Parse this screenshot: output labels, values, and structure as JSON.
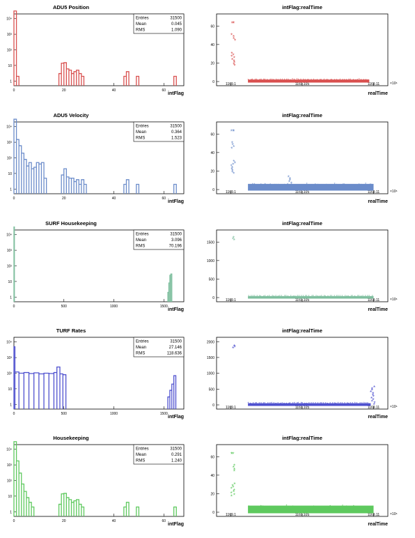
{
  "chart_data": [
    {
      "type": "histogram",
      "title": "ADU5 Position",
      "xlabel": "intFlag",
      "log_y": true,
      "xlim": [
        0,
        68
      ],
      "ylim": [
        0.5,
        20000
      ],
      "x_ticks": [
        "0",
        "20",
        "40",
        "60"
      ],
      "y_ticks": [
        "1",
        "10",
        "10²",
        "10³",
        "10⁴"
      ],
      "stats": {
        "Entries": "31500",
        "Mean": "0.045",
        "RMS": "1.090"
      },
      "color": "#d9504f",
      "bins": [
        [
          0,
          1,
          31000
        ],
        [
          1,
          2,
          2
        ],
        [
          18,
          19,
          3
        ],
        [
          19,
          20,
          14
        ],
        [
          20,
          21,
          15
        ],
        [
          21,
          22,
          6
        ],
        [
          22,
          23,
          5
        ],
        [
          23,
          24,
          3
        ],
        [
          24,
          25,
          4
        ],
        [
          25,
          26,
          5
        ],
        [
          26,
          27,
          3
        ],
        [
          27,
          28,
          2
        ],
        [
          44,
          45,
          2
        ],
        [
          45,
          46,
          4
        ],
        [
          49,
          50,
          2
        ],
        [
          64,
          65,
          2
        ]
      ]
    },
    {
      "type": "scatter",
      "title": "intFlag:realTime",
      "xlabel": "realTime",
      "x_multiplier": "×10⁶",
      "xlim": [
        1169.0,
        1169.12
      ],
      "ylim": [
        0,
        70
      ],
      "x_ticks": [
        "1169.1",
        "1169.105",
        "1169.11"
      ],
      "y_ticks": [
        "0",
        "20",
        "40",
        "60"
      ],
      "color": "#d9504f",
      "clusters": [
        {
          "x": [
            1169.01,
            1169.012
          ],
          "y": [
            63,
            63
          ]
        },
        {
          "x": [
            1169.01,
            1169.012
          ],
          "y": [
            44,
            50
          ]
        },
        {
          "x": [
            1169.01,
            1169.012
          ],
          "y": [
            17,
            30
          ]
        },
        {
          "x": [
            1169.022,
            1169.107
          ],
          "y": [
            0,
            1
          ]
        }
      ]
    },
    {
      "type": "histogram",
      "title": "ADU5 Velocity",
      "xlabel": "intFlag",
      "log_y": true,
      "xlim": [
        0,
        68
      ],
      "ylim": [
        0.5,
        20000
      ],
      "x_ticks": [
        "0",
        "20",
        "40",
        "60"
      ],
      "y_ticks": [
        "1",
        "10",
        "10²",
        "10³",
        "10⁴"
      ],
      "stats": {
        "Entries": "31500",
        "Mean": "0.364",
        "RMS": "1.523"
      },
      "color": "#6b8cca",
      "bins": [
        [
          0,
          1,
          30000
        ],
        [
          1,
          2,
          1500
        ],
        [
          2,
          3,
          600
        ],
        [
          3,
          4,
          200
        ],
        [
          4,
          5,
          80
        ],
        [
          5,
          6,
          30
        ],
        [
          6,
          7,
          50
        ],
        [
          7,
          8,
          20
        ],
        [
          8,
          9,
          25
        ],
        [
          9,
          10,
          50
        ],
        [
          10,
          11,
          40
        ],
        [
          11,
          12,
          50
        ],
        [
          12,
          13,
          5
        ],
        [
          19,
          20,
          8
        ],
        [
          20,
          21,
          20
        ],
        [
          21,
          22,
          6
        ],
        [
          22,
          23,
          5
        ],
        [
          23,
          24,
          5
        ],
        [
          24,
          25,
          3
        ],
        [
          25,
          26,
          4
        ],
        [
          26,
          27,
          2
        ],
        [
          27,
          28,
          4
        ],
        [
          28,
          29,
          2
        ],
        [
          44,
          45,
          2
        ],
        [
          45,
          46,
          4
        ],
        [
          49,
          50,
          2
        ],
        [
          64,
          65,
          2
        ]
      ]
    },
    {
      "type": "scatter",
      "title": "intFlag:realTime",
      "xlabel": "realTime",
      "x_multiplier": "×10⁶",
      "xlim": [
        1169.0,
        1169.12
      ],
      "ylim": [
        0,
        70
      ],
      "x_ticks": [
        "1169.1",
        "1169.105",
        "1169.11"
      ],
      "y_ticks": [
        "0",
        "20",
        "40",
        "60"
      ],
      "color": "#6b8cca",
      "clusters": [
        {
          "x": [
            1169.01,
            1169.012
          ],
          "y": [
            63,
            63
          ]
        },
        {
          "x": [
            1169.01,
            1169.012
          ],
          "y": [
            44,
            50
          ]
        },
        {
          "x": [
            1169.01,
            1169.012
          ],
          "y": [
            17,
            30
          ]
        },
        {
          "x": [
            1169.05,
            1169.052
          ],
          "y": [
            3,
            13
          ]
        },
        {
          "x": [
            1169.022,
            1169.11
          ],
          "y": [
            0,
            5
          ]
        }
      ]
    },
    {
      "type": "histogram",
      "title": "SURF Housekeeping",
      "xlabel": "intFlag",
      "log_y": true,
      "xlim": [
        0,
        1700
      ],
      "ylim": [
        0.5,
        20000
      ],
      "x_ticks": [
        "0",
        "500",
        "1000",
        "1500"
      ],
      "y_ticks": [
        "1",
        "10",
        "10²",
        "10³",
        "10⁴"
      ],
      "stats": {
        "Entries": "31500",
        "Mean": "3.096",
        "RMS": "70.196"
      },
      "color": "#7fbf9f",
      "bins": [
        [
          0,
          5,
          31400
        ],
        [
          1540,
          1550,
          2
        ],
        [
          1550,
          1560,
          8
        ],
        [
          1560,
          1570,
          25
        ],
        [
          1570,
          1580,
          30
        ]
      ]
    },
    {
      "type": "scatter",
      "title": "intFlag:realTime",
      "xlabel": "realTime",
      "x_multiplier": "×10⁶",
      "xlim": [
        1169.0,
        1169.12
      ],
      "ylim": [
        0,
        1750
      ],
      "x_ticks": [
        "1169.1",
        "1169.105",
        "1169.11"
      ],
      "y_ticks": [
        "0",
        "500",
        "1000",
        "1500"
      ],
      "color": "#7fbf9f",
      "clusters": [
        {
          "x": [
            1169.01,
            1169.012
          ],
          "y": [
            1540,
            1610
          ]
        },
        {
          "x": [
            1169.022,
            1169.11
          ],
          "y": [
            0,
            12
          ]
        }
      ]
    },
    {
      "type": "histogram",
      "title": "TURF Rates",
      "xlabel": "intFlag",
      "log_y": true,
      "xlim": [
        0,
        1700
      ],
      "ylim": [
        0.5,
        20000
      ],
      "x_ticks": [
        "0",
        "500",
        "1000",
        "1500"
      ],
      "y_ticks": [
        "1",
        "10",
        "10²",
        "10³",
        "10⁴"
      ],
      "stats": {
        "Entries": "31500",
        "Mean": "27.146",
        "RMS": "118.636"
      },
      "color": "#4f51cf",
      "bins": [
        [
          0,
          10,
          5000
        ],
        [
          10,
          50,
          120
        ],
        [
          50,
          100,
          100
        ],
        [
          100,
          150,
          110
        ],
        [
          150,
          200,
          95
        ],
        [
          200,
          250,
          105
        ],
        [
          250,
          300,
          90
        ],
        [
          300,
          350,
          100
        ],
        [
          350,
          400,
          95
        ],
        [
          400,
          430,
          110
        ],
        [
          430,
          460,
          250
        ],
        [
          460,
          490,
          90
        ],
        [
          490,
          520,
          80
        ],
        [
          1540,
          1560,
          3
        ],
        [
          1560,
          1580,
          8
        ],
        [
          1580,
          1600,
          20
        ],
        [
          1600,
          1620,
          70
        ]
      ]
    },
    {
      "type": "scatter",
      "title": "intFlag:realTime",
      "xlabel": "realTime",
      "x_multiplier": "×10⁶",
      "xlim": [
        1169.0,
        1169.12
      ],
      "ylim": [
        0,
        2050
      ],
      "x_ticks": [
        "1169.1",
        "1169.105",
        "1169.11"
      ],
      "y_ticks": [
        "0",
        "500",
        "1000",
        "1500",
        "2000"
      ],
      "color": "#4f51cf",
      "clusters": [
        {
          "x": [
            1169.01,
            1169.012
          ],
          "y": [
            1780,
            1850
          ]
        },
        {
          "x": [
            1169.022,
            1169.108
          ],
          "y": [
            0,
            20
          ]
        },
        {
          "x": [
            1169.108,
            1169.11
          ],
          "y": [
            0,
            550
          ]
        }
      ]
    },
    {
      "type": "histogram",
      "title": "Housekeeping",
      "xlabel": "intFlag",
      "log_y": true,
      "xlim": [
        0,
        68
      ],
      "ylim": [
        0.5,
        20000
      ],
      "x_ticks": [
        "0",
        "20",
        "40",
        "60"
      ],
      "y_ticks": [
        "1",
        "10",
        "10²",
        "10³",
        "10⁴"
      ],
      "stats": {
        "Entries": "31500",
        "Mean": "0.291",
        "RMS": "1.240"
      },
      "color": "#5ec95e",
      "bins": [
        [
          0,
          1,
          31000
        ],
        [
          1,
          2,
          1800
        ],
        [
          2,
          3,
          300
        ],
        [
          3,
          4,
          60
        ],
        [
          4,
          5,
          20
        ],
        [
          5,
          6,
          8
        ],
        [
          6,
          7,
          4
        ],
        [
          7,
          8,
          2
        ],
        [
          18,
          19,
          3
        ],
        [
          19,
          20,
          14
        ],
        [
          20,
          21,
          15
        ],
        [
          21,
          22,
          8
        ],
        [
          22,
          23,
          6
        ],
        [
          23,
          24,
          4
        ],
        [
          24,
          25,
          5
        ],
        [
          25,
          26,
          6
        ],
        [
          26,
          27,
          3
        ],
        [
          27,
          28,
          2
        ],
        [
          44,
          45,
          2
        ],
        [
          45,
          46,
          4
        ],
        [
          49,
          50,
          2
        ],
        [
          64,
          65,
          2
        ]
      ]
    },
    {
      "type": "scatter",
      "title": "intFlag:realTime",
      "xlabel": "realTime",
      "x_multiplier": "×10⁶",
      "xlim": [
        1169.0,
        1169.12
      ],
      "ylim": [
        0,
        70
      ],
      "x_ticks": [
        "1169.1",
        "1169.105",
        "1169.11"
      ],
      "y_ticks": [
        "0",
        "20",
        "40",
        "60"
      ],
      "color": "#5ec95e",
      "clusters": [
        {
          "x": [
            1169.01,
            1169.012
          ],
          "y": [
            63,
            63
          ]
        },
        {
          "x": [
            1169.01,
            1169.012
          ],
          "y": [
            44,
            50
          ]
        },
        {
          "x": [
            1169.01,
            1169.012
          ],
          "y": [
            17,
            30
          ]
        },
        {
          "x": [
            1169.022,
            1169.11
          ],
          "y": [
            0,
            6
          ]
        }
      ]
    }
  ]
}
